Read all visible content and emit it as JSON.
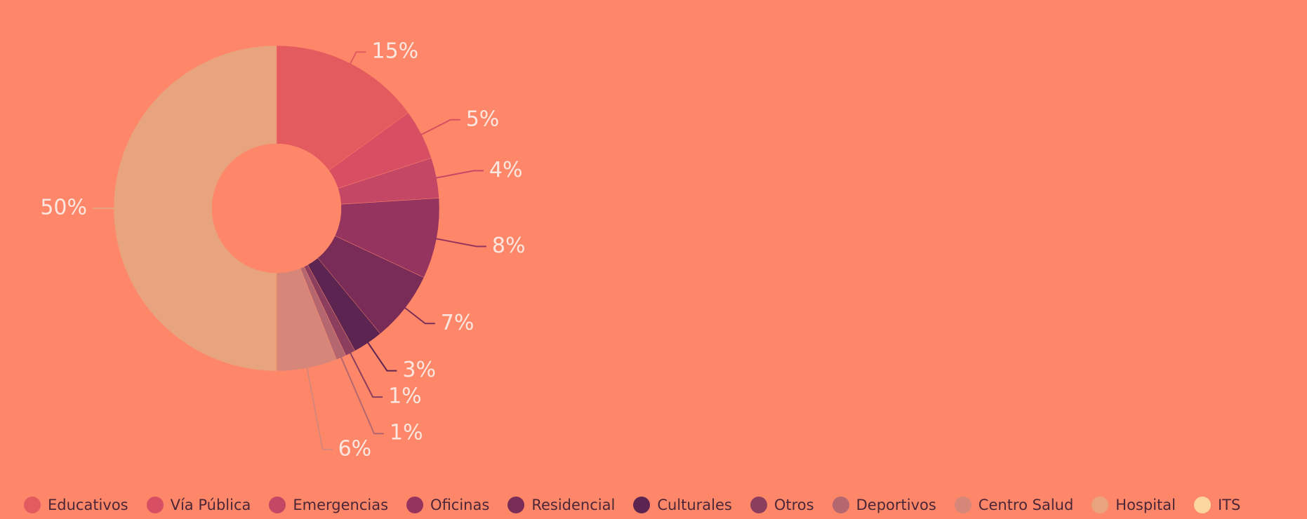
{
  "chart_data": {
    "type": "pie",
    "donut": true,
    "categories": [
      "Educativos",
      "Vía Pública",
      "Emergencias",
      "Oficinas",
      "Residencial",
      "Culturales",
      "Otros",
      "Deportivos",
      "Centro Salud",
      "Hospital",
      "ITS"
    ],
    "values": [
      15,
      5,
      4,
      8,
      7,
      3,
      1,
      1,
      6,
      50,
      0
    ],
    "labels": [
      "15%",
      "5%",
      "4%",
      "8%",
      "7%",
      "3%",
      "1%",
      "1%",
      "6%",
      "50%",
      ""
    ],
    "colors": [
      "#e35a5f",
      "#d84f63",
      "#c44765",
      "#963460",
      "#7a2c58",
      "#5c2450",
      "#8c3e5e",
      "#b56770",
      "#d6877a",
      "#e8a47e",
      "#fbd7a0"
    ],
    "legend_position": "bottom"
  }
}
